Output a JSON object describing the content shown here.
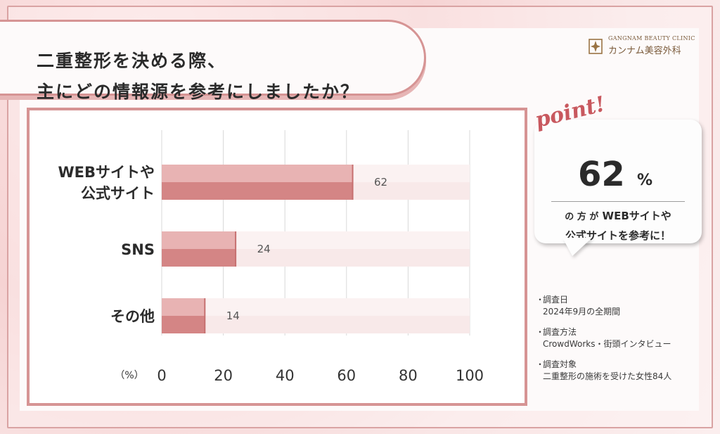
{
  "title": {
    "line1": "二重整形を決める際、",
    "line2": "主にどの情報源を参考にしましたか？"
  },
  "logo": {
    "english": "GANGNAM BEAUTY CLINIC",
    "japanese": "カンナム美容外科"
  },
  "chart_data": {
    "type": "bar",
    "orientation": "horizontal",
    "categories": [
      [
        "WEBサイトや",
        "公式サイト"
      ],
      [
        "SNS"
      ],
      [
        "その他"
      ]
    ],
    "values": [
      62,
      24,
      14
    ],
    "data_labels": [
      "62",
      "24",
      "14"
    ],
    "xlim": [
      0,
      100
    ],
    "x_ticks": [
      "0",
      "20",
      "40",
      "60",
      "80",
      "100"
    ],
    "unit_label": "（%）",
    "grid": true,
    "colors": {
      "bar_light": "#e8b3b3",
      "bar_dark": "#d48585",
      "track": "#f8e9e9",
      "grid": "#d8d8d8"
    }
  },
  "point": {
    "script": "point!",
    "big_number": "62",
    "percent_sign": "%",
    "line1_prefix": "の 方 が",
    "line1_main": "WEBサイトや",
    "line2": "公式サイトを参考に！"
  },
  "notes": [
    {
      "bullet": "・",
      "label": "調査日",
      "detail": "2024年9月の全期間"
    },
    {
      "bullet": "・",
      "label": "調査方法",
      "detail": "CrowdWorks・街頭インタビュー"
    },
    {
      "bullet": "・",
      "label": "調査対象",
      "detail": "二重整形の施術を受けた女性84人"
    }
  ],
  "colors": {
    "accent": "#d69494",
    "script": "#c8585e",
    "text": "#2b2b2b"
  }
}
